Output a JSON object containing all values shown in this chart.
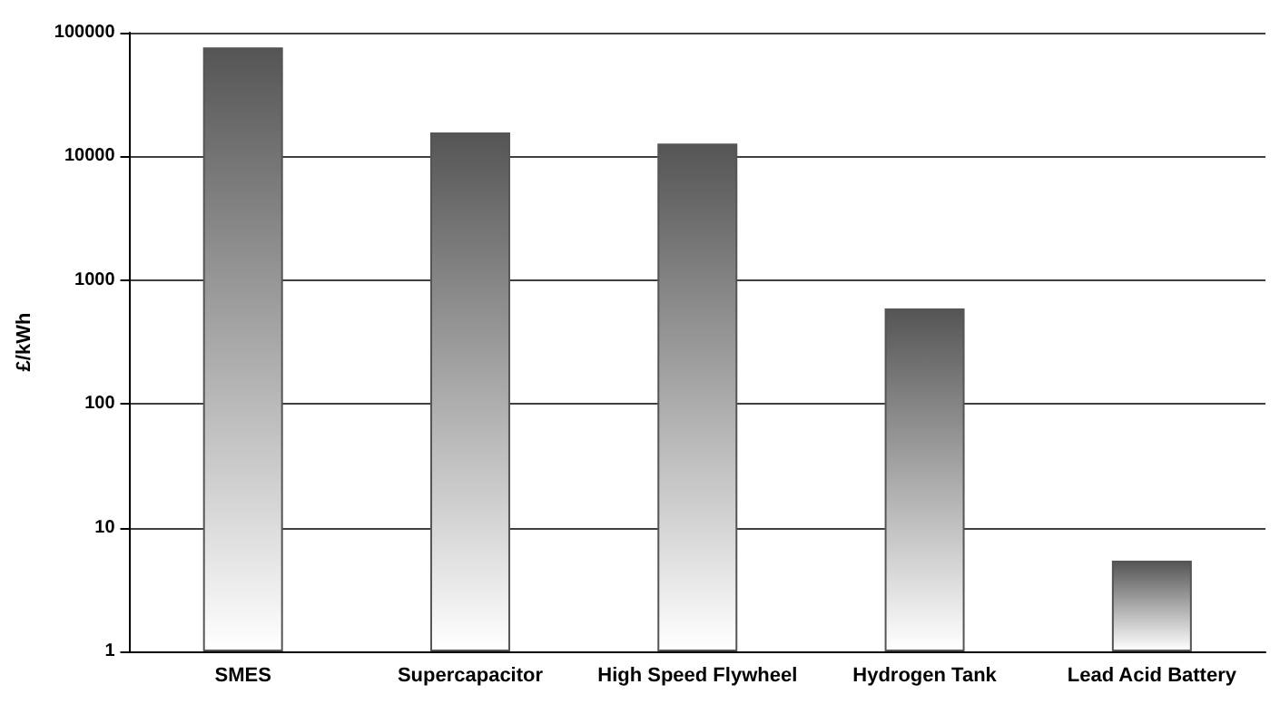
{
  "chart_data": {
    "type": "bar",
    "ylabel": "£/kWh",
    "categories": [
      "SMES",
      "Supercapacitor",
      "High Speed Flywheel",
      "Hydrogen Tank",
      "Lead Acid Battery"
    ],
    "values": [
      76000,
      15600,
      12700,
      590,
      5.4
    ],
    "color": "#555555",
    "log": true,
    "ylim": [
      1,
      100000
    ],
    "yticks": [
      1,
      10,
      100,
      1000,
      10000,
      100000
    ],
    "grid": "y"
  }
}
